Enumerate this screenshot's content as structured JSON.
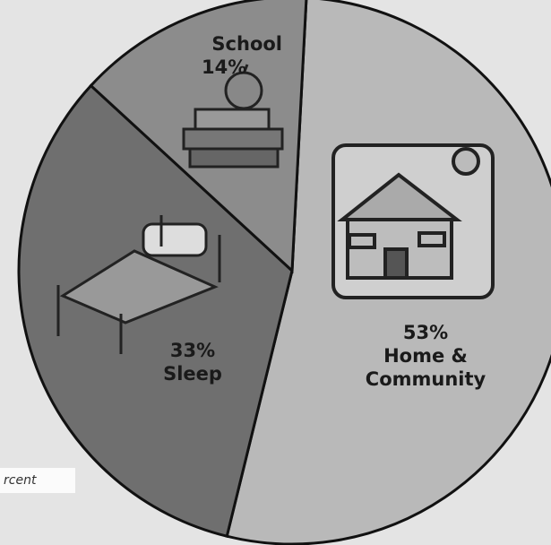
{
  "chart_data": {
    "type": "pie",
    "categories": [
      "Home & Community",
      "Sleep",
      "School"
    ],
    "values": [
      53,
      33,
      14
    ],
    "value_labels": [
      "53%",
      "33%",
      "14%"
    ],
    "colors": [
      "#b9b9b9",
      "#6f6f6f",
      "#8c8c8c"
    ],
    "note": "rcent"
  }
}
